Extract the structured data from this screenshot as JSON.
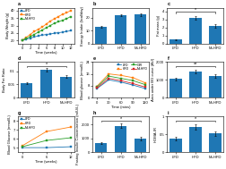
{
  "chart_data": [
    {
      "type": "line",
      "title": "a",
      "xlabel": "Time (weeks)",
      "ylabel": "Body Weight (g)",
      "x": [
        0,
        1,
        2,
        3,
        4,
        5,
        6,
        7,
        8,
        9,
        10,
        11,
        12
      ],
      "series": [
        {
          "name": "LFD",
          "values": [
            20,
            20.8,
            21.5,
            22.3,
            23,
            23.5,
            24,
            24.3,
            24.8,
            25.2,
            25.5,
            26,
            26.5
          ]
        },
        {
          "name": "HFD",
          "values": [
            20,
            22,
            24,
            26,
            27.5,
            29,
            31,
            33,
            34.5,
            36,
            37.5,
            38.5,
            40
          ]
        },
        {
          "name": "M+HFD",
          "values": [
            20,
            21.3,
            22.5,
            24,
            25.5,
            27,
            28.5,
            30,
            31.5,
            32.5,
            33.5,
            34.5,
            36
          ]
        }
      ],
      "xlim": [
        -1,
        13
      ],
      "xticks": [
        0,
        2,
        4,
        6,
        8,
        10,
        12
      ],
      "ylim": [
        18,
        42
      ],
      "yticks": [
        20,
        25,
        30,
        35,
        40
      ],
      "legend": "upper left"
    },
    {
      "type": "bar",
      "title": "b",
      "ylabel": "Energy Intake (kcal/day)",
      "categories": [
        "LFD",
        "HFD",
        "M+HFD"
      ],
      "values": [
        13,
        22,
        22.5
      ],
      "errors": [
        0.5,
        0.8,
        0.9
      ],
      "ylim": [
        0,
        28
      ],
      "yticks": [
        0,
        10,
        20
      ]
    },
    {
      "type": "bar",
      "title": "c",
      "ylabel": "Fat mass (g)",
      "categories": [
        "LFD",
        "HFD",
        "M+HFD"
      ],
      "values": [
        0.5,
        3.2,
        2.2
      ],
      "errors": [
        0.05,
        0.25,
        0.2
      ],
      "ylim": [
        0,
        4.5
      ],
      "yticks": [
        0,
        1,
        2,
        3,
        4
      ],
      "annotations": [
        {
          "text": "*",
          "from": "LFD",
          "to": "M+HFD"
        }
      ]
    },
    {
      "type": "bar",
      "title": "d",
      "ylabel": "Body Fat Ratio",
      "categories": [
        "LFD",
        "HFD",
        "M+HFD"
      ],
      "values": [
        0.055,
        0.105,
        0.08
      ],
      "errors": [
        0.004,
        0.007,
        0.006
      ],
      "ylim": [
        0,
        0.135
      ],
      "yticks": [
        0,
        0.05,
        0.1
      ],
      "annotations": [
        {
          "text": "*",
          "from": "LFD",
          "to": "M+HFD"
        }
      ]
    },
    {
      "type": "line",
      "title": "e",
      "xlabel": "Time (mins)",
      "ylabel": "Blood glucose (mmol/L)",
      "x": [
        0,
        30,
        60,
        90,
        120
      ],
      "series": [
        {
          "name": "LFD",
          "values": [
            6.0,
            12.0,
            10.5,
            8.5,
            6.2
          ]
        },
        {
          "name": "HFD",
          "values": [
            7.5,
            16.0,
            15.0,
            13.5,
            10.0
          ]
        },
        {
          "name": "GIR",
          "values": [
            7.2,
            14.5,
            13.0,
            11.5,
            8.8
          ]
        },
        {
          "name": "M+HFD",
          "values": [
            6.5,
            13.0,
            11.5,
            9.5,
            7.2
          ]
        }
      ],
      "xlim": [
        -10,
        130
      ],
      "xticks": [
        0,
        30,
        60,
        90,
        120
      ],
      "ylim": [
        0,
        24
      ],
      "yticks": [
        0,
        8,
        16,
        24
      ],
      "legend": "upper right"
    },
    {
      "type": "bar",
      "title": "f",
      "ylabel": "Area under BG curve (AU)",
      "categories": [
        "LFD",
        "HFD",
        "M+HFD"
      ],
      "values": [
        1050,
        1480,
        1230
      ],
      "errors": [
        90,
        110,
        95
      ],
      "ylim": [
        0,
        2000
      ],
      "yticks": [
        0,
        1000,
        2000
      ],
      "annotations": [
        {
          "text": "**",
          "from": "LFD",
          "to": "M+HFD"
        }
      ]
    },
    {
      "type": "line",
      "title": "g",
      "xlabel": "Time (weeks)",
      "ylabel": "Blood Glucose (mmol/L)",
      "x": [
        0,
        6,
        12
      ],
      "series": [
        {
          "name": "LFD",
          "values": [
            5.0,
            5.0,
            5.1
          ]
        },
        {
          "name": "HFD",
          "values": [
            5.2,
            6.8,
            7.3
          ]
        },
        {
          "name": "M+HFD",
          "values": [
            5.1,
            5.8,
            6.1
          ]
        }
      ],
      "xlim": [
        -1,
        13
      ],
      "xticks": [
        0,
        6,
        12
      ],
      "ylim": [
        4.5,
        8.5
      ],
      "yticks": [
        5,
        6,
        7,
        8
      ],
      "legend": "upper left"
    },
    {
      "type": "bar",
      "title": "h",
      "ylabel": "Fasting Insulin Concentration (mIU/L)",
      "categories": [
        "LFD",
        "HFD",
        "M+HFD"
      ],
      "values": [
        650,
        1900,
        980
      ],
      "errors": [
        60,
        160,
        110
      ],
      "ylim": [
        0,
        2600
      ],
      "yticks": [
        0,
        1000,
        2000
      ],
      "annotations": [
        {
          "text": "*",
          "from": "LFD",
          "to": "M+HFD"
        }
      ]
    },
    {
      "type": "bar",
      "title": "i",
      "ylabel": "HOMA-IR",
      "categories": [
        "LFD",
        "HFD",
        "M+HFD"
      ],
      "values": [
        0.38,
        0.7,
        0.52
      ],
      "errors": [
        0.04,
        0.07,
        0.06
      ],
      "ylim": [
        0,
        1
      ],
      "yticks": [
        0,
        0.5,
        1
      ],
      "annotations": [
        {
          "text": "*",
          "from": "LFD",
          "to": "M+HFD"
        }
      ]
    }
  ]
}
